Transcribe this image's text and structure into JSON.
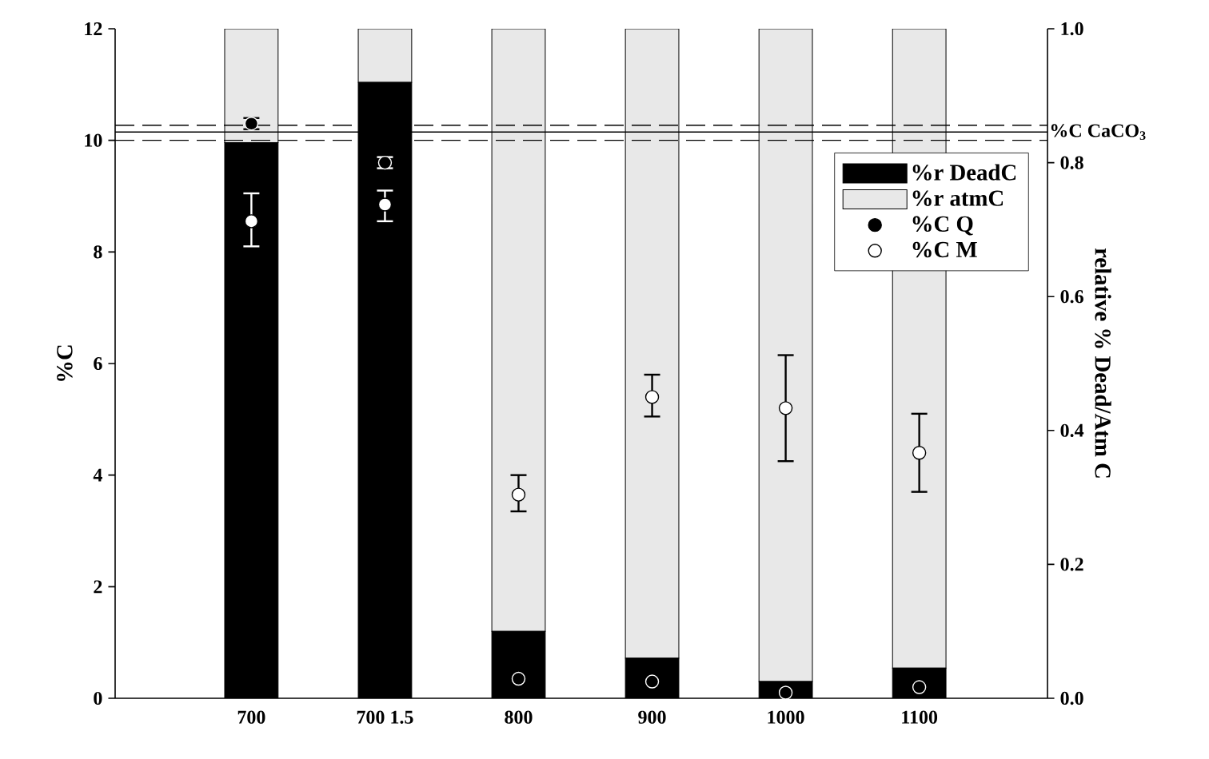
{
  "chart_data": {
    "type": "bar",
    "stacked": true,
    "categories": [
      "700",
      "700  1.5",
      "800",
      "900",
      "1000",
      "1100"
    ],
    "series": [
      {
        "name": "%r DeadC",
        "type": "bar",
        "axis": "y2",
        "color": "#000000",
        "values": [
          0.83,
          0.92,
          0.1,
          0.06,
          0.025,
          0.045
        ]
      },
      {
        "name": "%r atmC",
        "type": "bar",
        "axis": "y2",
        "color": "#e8e8e8",
        "values": [
          0.17,
          0.08,
          0.9,
          0.94,
          0.975,
          0.955
        ]
      },
      {
        "name": "%C Q",
        "type": "scatter",
        "marker": "circle",
        "color": "#000000",
        "values": [
          10.3,
          9.6,
          0.35,
          0.3,
          0.1,
          0.2
        ],
        "errors": [
          0.1,
          0.1,
          null,
          null,
          null,
          null
        ]
      },
      {
        "name": "%C M",
        "type": "scatter",
        "marker": "circle",
        "color": "#ffffff",
        "values": [
          8.55,
          8.85,
          3.65,
          5.4,
          5.2,
          4.4
        ],
        "errors": [
          [
            8.1,
            9.05
          ],
          [
            8.55,
            9.1
          ],
          [
            3.35,
            4.0
          ],
          [
            5.05,
            5.8
          ],
          [
            4.25,
            6.15
          ],
          [
            3.7,
            5.1
          ]
        ]
      }
    ],
    "ylabel": "%C",
    "y2label": "relative % Dead/Atm C",
    "ylim": [
      0,
      12
    ],
    "yticks": [
      0,
      2,
      4,
      6,
      8,
      10,
      12
    ],
    "y2lim": [
      0,
      1
    ],
    "y2ticks": [
      {
        "value": 0,
        "label": "0.0"
      },
      {
        "value": 0.2,
        "label": "0.2"
      },
      {
        "value": 0.4,
        "label": "0.4"
      },
      {
        "value": 0.6,
        "label": "0.6"
      },
      {
        "value": 0.8,
        "label": "0.8"
      },
      {
        "value": 1,
        "label": "1.0"
      }
    ],
    "ref_lines": [
      {
        "axis": "y",
        "value": 10.27,
        "line_style": "dashed"
      },
      {
        "axis": "y",
        "value": 10.15,
        "line_style": "solid",
        "label": "%C CaCO$_{3}$"
      },
      {
        "axis": "y",
        "value": 10.0,
        "line_style": "dashed"
      }
    ],
    "legend": "right",
    "grid": false
  }
}
